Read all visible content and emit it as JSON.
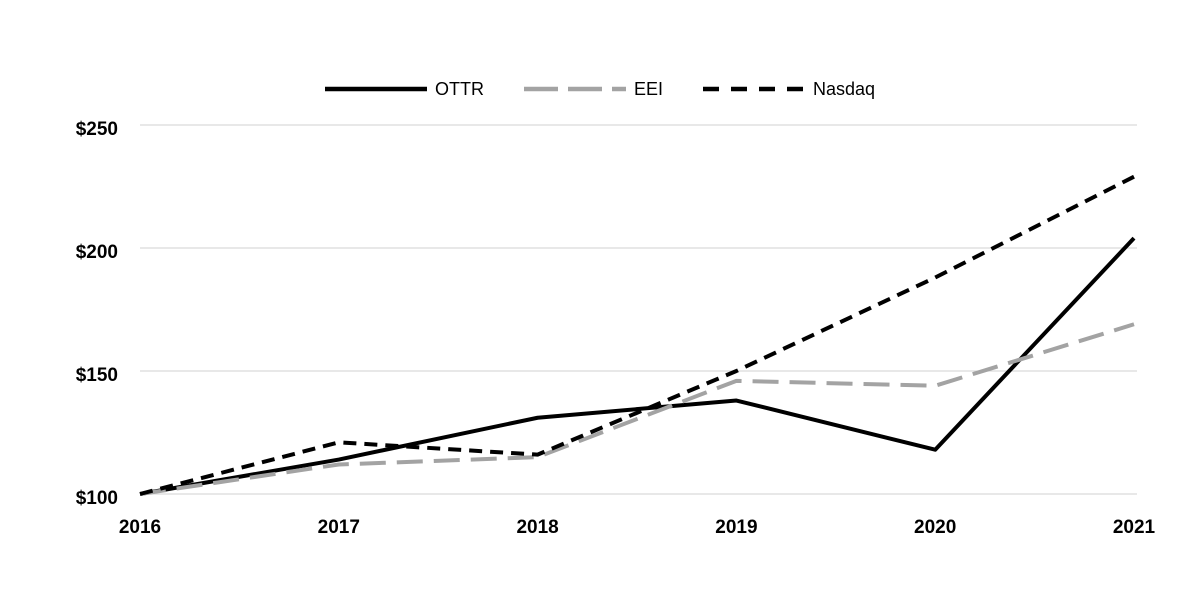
{
  "chart_data": {
    "type": "line",
    "title": "",
    "xlabel": "",
    "ylabel": "",
    "categories": [
      "2016",
      "2017",
      "2018",
      "2019",
      "2020",
      "2021"
    ],
    "series": [
      {
        "name": "OTTR",
        "color": "#000000",
        "line_style": "solid",
        "values": [
          100,
          114,
          131,
          138,
          118,
          204
        ]
      },
      {
        "name": "EEI",
        "color": "#a3a3a3",
        "line_style": "long-dash",
        "values": [
          100,
          112,
          115,
          146,
          144,
          169
        ]
      },
      {
        "name": "Nasdaq",
        "color": "#000000",
        "line_style": "dash",
        "values": [
          100,
          121,
          116,
          150,
          188,
          229
        ]
      }
    ],
    "ylim": [
      100,
      250
    ],
    "y_tick_values": [
      100,
      150,
      200,
      250
    ],
    "y_tick_labels": [
      "$100",
      "$150",
      "$200",
      "$250"
    ],
    "x_tick_labels": [
      "2016",
      "2017",
      "2018",
      "2019",
      "2020",
      "2021"
    ],
    "grid": "horizontal",
    "legend_position": "top-center",
    "colors": {
      "background": "#ffffff",
      "gridline": "#d9d9d9",
      "axis_text": "#000000"
    }
  }
}
